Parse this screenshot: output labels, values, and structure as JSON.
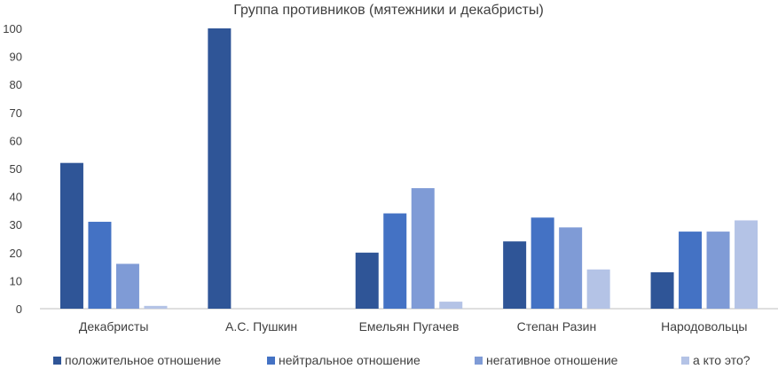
{
  "chart_data": {
    "type": "bar",
    "title": "Группа противников (мятежники и декабристы)",
    "xlabel": "",
    "ylabel": "",
    "ylim": [
      0,
      100
    ],
    "yticks": [
      0,
      10,
      20,
      30,
      40,
      50,
      60,
      70,
      80,
      90,
      100
    ],
    "categories": [
      "Декабристы",
      "А.С. Пушкин",
      "Емельян Пугачев",
      "Степан Разин",
      "Народовольцы"
    ],
    "series": [
      {
        "name": "положительное отношение",
        "color": "#2f5597",
        "values": [
          52,
          100,
          20,
          24,
          13
        ]
      },
      {
        "name": "нейтральное отношение",
        "color": "#4472c4",
        "values": [
          31,
          0,
          34,
          32.5,
          27.5
        ]
      },
      {
        "name": "негативное отношение",
        "color": "#7f9bd6",
        "values": [
          16,
          0,
          43,
          29,
          27.5
        ]
      },
      {
        "name": "а кто это?",
        "color": "#b4c3e6",
        "values": [
          1,
          0,
          2.5,
          14,
          31.5
        ]
      }
    ],
    "grid": false,
    "legend_position": "bottom"
  }
}
